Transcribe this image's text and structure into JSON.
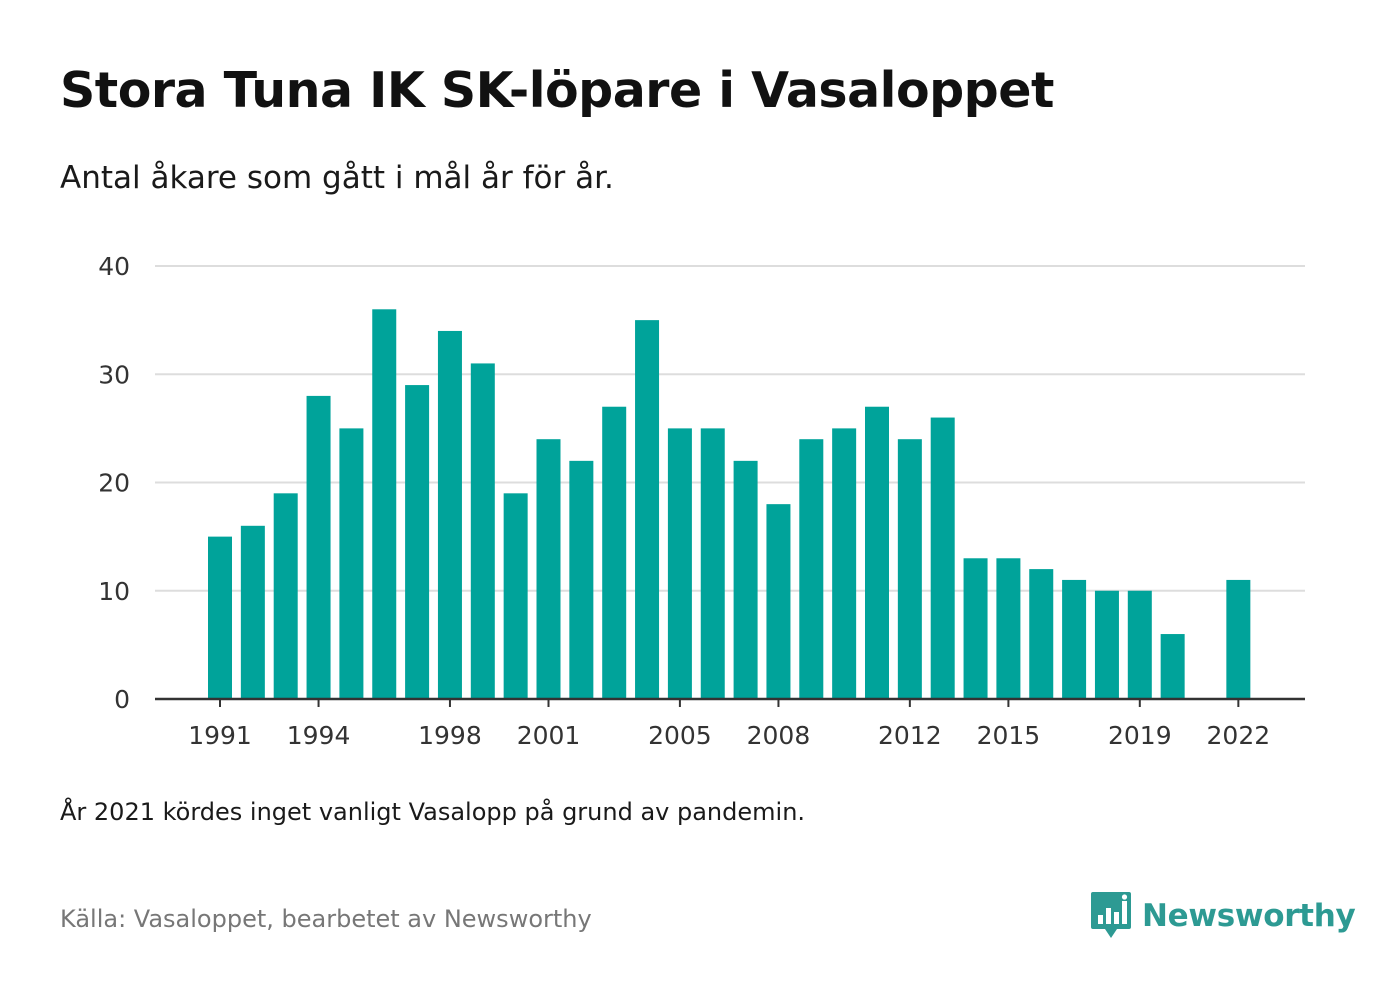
{
  "title": "Stora Tuna IK SK-löpare i Vasaloppet",
  "subtitle": "Antal åkare som gått i mål år för år.",
  "note": "År 2021 kördes inget vanligt Vasalopp på grund av pandemin.",
  "source": "Källa: Vasaloppet, bearbetet av Newsworthy",
  "brand": {
    "name": "Newsworthy",
    "icon": "newsworthy-logo-icon",
    "color": "#2d9a93"
  },
  "colors": {
    "bar": "#00a39a",
    "grid": "#dddddd",
    "axis": "#333333"
  },
  "chart_data": {
    "type": "bar",
    "x": [
      1991,
      1992,
      1993,
      1994,
      1995,
      1996,
      1997,
      1998,
      1999,
      2000,
      2001,
      2002,
      2003,
      2004,
      2005,
      2006,
      2007,
      2008,
      2009,
      2010,
      2011,
      2012,
      2013,
      2014,
      2015,
      2016,
      2017,
      2018,
      2019,
      2020,
      2021,
      2022
    ],
    "values": [
      15,
      16,
      19,
      28,
      25,
      36,
      29,
      34,
      31,
      19,
      24,
      22,
      27,
      35,
      25,
      25,
      22,
      18,
      24,
      25,
      27,
      24,
      26,
      13,
      13,
      12,
      11,
      10,
      10,
      6,
      null,
      11
    ],
    "x_tick_labels": [
      "1991",
      "1994",
      "1998",
      "2001",
      "2005",
      "2008",
      "2012",
      "2015",
      "2019",
      "2022"
    ],
    "y_ticks": [
      0,
      10,
      20,
      30,
      40
    ],
    "ylim": [
      0,
      40
    ],
    "grid": true,
    "title": "Stora Tuna IK SK-löpare i Vasaloppet",
    "xlabel": "",
    "ylabel": ""
  }
}
